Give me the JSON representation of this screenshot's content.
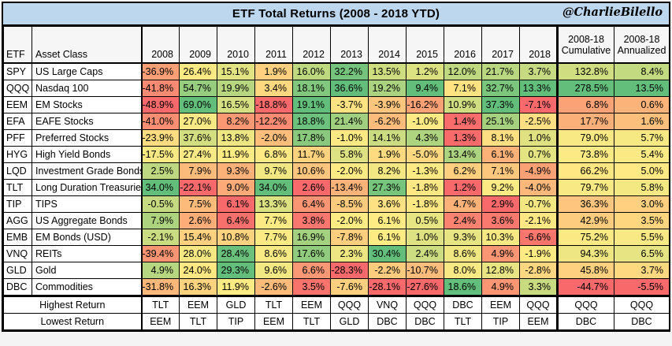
{
  "chart_data": {
    "type": "table",
    "title": "ETF Total Returns (2008 - 2018 YTD)",
    "credit": "@CharlieBilello",
    "unit": "%",
    "header": {
      "etf": "ETF",
      "asset_class": "Asset Class",
      "years": [
        "2008",
        "2009",
        "2010",
        "2011",
        "2012",
        "2013",
        "2014",
        "2015",
        "2016",
        "2017",
        "2018"
      ],
      "wide": [
        [
          "2008-18",
          "Cumulative"
        ],
        [
          "2008-18",
          "Annualized"
        ]
      ]
    },
    "value_columns": [
      "2008",
      "2009",
      "2010",
      "2011",
      "2012",
      "2013",
      "2014",
      "2015",
      "2016",
      "2017",
      "2018",
      "2008-18 Cumulative",
      "2008-18 Annualized"
    ],
    "rows": [
      {
        "etf": "SPY",
        "asset_class": "US Large Caps",
        "values": [
          -36.9,
          26.4,
          15.1,
          1.9,
          16.0,
          32.2,
          13.5,
          1.2,
          12.0,
          21.7,
          3.7,
          132.8,
          8.4
        ]
      },
      {
        "etf": "QQQ",
        "asset_class": "Nasdaq 100",
        "values": [
          -41.8,
          54.7,
          19.9,
          3.4,
          18.1,
          36.6,
          19.2,
          9.4,
          7.1,
          32.7,
          13.3,
          278.5,
          13.5
        ]
      },
      {
        "etf": "EEM",
        "asset_class": "EM Stocks",
        "values": [
          -48.9,
          69.0,
          16.5,
          -18.8,
          19.1,
          -3.7,
          -3.9,
          -16.2,
          10.9,
          37.3,
          -7.1,
          6.8,
          0.6
        ]
      },
      {
        "etf": "EFA",
        "asset_class": "EAFE Stocks",
        "values": [
          -41.0,
          27.0,
          8.2,
          -12.2,
          18.8,
          21.4,
          -6.2,
          -1.0,
          1.4,
          25.1,
          -2.5,
          17.7,
          1.6
        ]
      },
      {
        "etf": "PFF",
        "asset_class": "Preferred Stocks",
        "values": [
          -23.9,
          37.6,
          13.8,
          -2.0,
          17.8,
          -1.0,
          14.1,
          4.3,
          1.3,
          8.1,
          1.0,
          79.0,
          5.7
        ]
      },
      {
        "etf": "HYG",
        "asset_class": "High Yield Bonds",
        "values": [
          -17.5,
          27.4,
          11.9,
          6.8,
          11.7,
          5.8,
          1.9,
          -5.0,
          13.4,
          6.1,
          0.7,
          73.8,
          5.4
        ]
      },
      {
        "etf": "LQD",
        "asset_class": "Investment Grade Bonds",
        "values": [
          2.5,
          7.9,
          9.3,
          9.7,
          10.6,
          -2.0,
          8.2,
          -1.3,
          6.2,
          7.1,
          -4.9,
          66.2,
          5.0
        ]
      },
      {
        "etf": "TLT",
        "asset_class": "Long Duration Treasuries",
        "values": [
          34.0,
          -22.1,
          9.0,
          34.0,
          2.6,
          -13.4,
          27.3,
          -1.8,
          1.2,
          9.2,
          -4.0,
          79.7,
          5.8
        ]
      },
      {
        "etf": "TIP",
        "asset_class": "TIPS",
        "values": [
          -0.5,
          7.5,
          6.1,
          13.3,
          6.4,
          -8.5,
          3.6,
          -1.8,
          4.7,
          2.9,
          -0.7,
          36.3,
          3.0
        ]
      },
      {
        "etf": "AGG",
        "asset_class": "US Aggregate Bonds",
        "values": [
          7.9,
          2.6,
          6.4,
          7.7,
          3.8,
          -2.0,
          6.1,
          0.5,
          2.4,
          3.6,
          -2.1,
          42.9,
          3.5
        ]
      },
      {
        "etf": "EMB",
        "asset_class": "EM Bonds (USD)",
        "values": [
          -2.1,
          15.4,
          10.8,
          7.7,
          16.9,
          -7.8,
          6.1,
          1.0,
          9.3,
          10.3,
          -6.6,
          75.2,
          5.5
        ]
      },
      {
        "etf": "VNQ",
        "asset_class": "REITs",
        "values": [
          -39.4,
          28.0,
          28.4,
          8.6,
          17.6,
          2.3,
          30.4,
          2.4,
          8.6,
          4.9,
          -1.9,
          94.3,
          6.5
        ]
      },
      {
        "etf": "GLD",
        "asset_class": "Gold",
        "values": [
          4.9,
          24.0,
          29.3,
          9.6,
          6.6,
          -28.3,
          -2.2,
          -10.7,
          8.0,
          12.8,
          -2.8,
          45.8,
          3.7
        ]
      },
      {
        "etf": "DBC",
        "asset_class": "Commodities",
        "values": [
          -31.8,
          16.3,
          11.9,
          -2.6,
          3.5,
          -7.6,
          -28.1,
          -27.6,
          18.6,
          4.9,
          3.3,
          -44.7,
          -5.5
        ]
      }
    ],
    "summary": [
      {
        "label": "Highest Return",
        "tickers": [
          "TLT",
          "EEM",
          "GLD",
          "TLT",
          "EEM",
          "QQQ",
          "VNQ",
          "QQQ",
          "DBC",
          "EEM",
          "QQQ",
          "QQQ",
          "QQQ"
        ]
      },
      {
        "label": "Lowest Return",
        "tickers": [
          "EEM",
          "TLT",
          "TIP",
          "EEM",
          "TLT",
          "GLD",
          "DBC",
          "DBC",
          "TLT",
          "TIP",
          "EEM",
          "DBC",
          "DBC"
        ]
      }
    ],
    "heatmap": {
      "description": "3-color scale applied per column: min=red, 50th percentile=yellow, max=green",
      "low": "#F8696B",
      "mid": "#FFEB84",
      "high": "#63BE7B"
    }
  },
  "colors": {
    "title_bg": "#BDD7EE",
    "header_bg": "#F6F6F6",
    "grid": "#000000"
  }
}
